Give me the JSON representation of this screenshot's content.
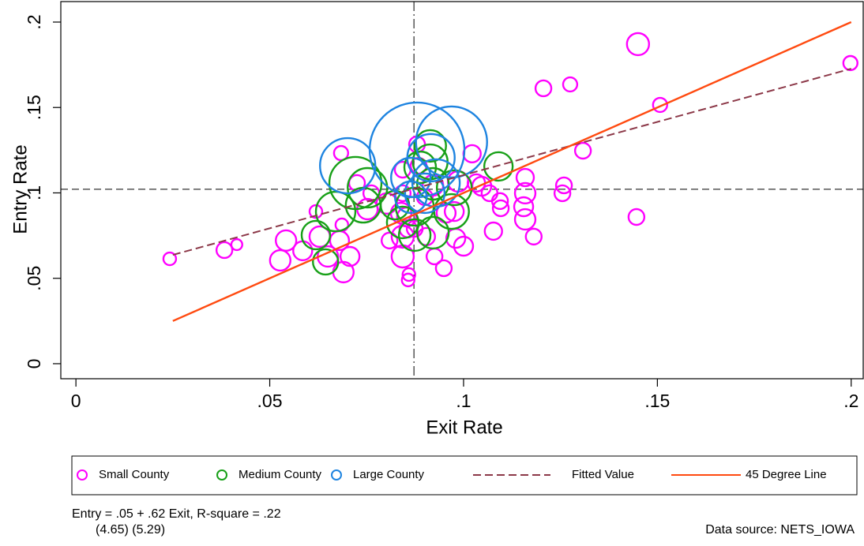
{
  "chart_data": {
    "type": "scatter",
    "x_label": "Exit Rate",
    "y_label": "Entry Rate",
    "xlim": [
      -0.0039,
      0.2031
    ],
    "ylim": [
      -0.0088,
      0.212
    ],
    "xticks": [
      0,
      {
        "value": 0.05,
        "label": ".05"
      },
      {
        "value": 0.1,
        "label": ".1"
      },
      {
        "value": 0.15,
        "label": ".15"
      },
      {
        "value": 0.2,
        "label": ".2"
      }
    ],
    "yticks": [
      0,
      {
        "value": 0.05,
        "label": ".05"
      },
      {
        "value": 0.1,
        "label": ".1"
      },
      {
        "value": 0.15,
        "label": ".15"
      },
      {
        "value": 0.2,
        "label": ".2"
      }
    ],
    "xline": 0.0872,
    "yline": 0.1021,
    "series": [
      {
        "name": "Small County",
        "kind": "bubble",
        "color": "#ff00ff",
        "x": [
          0.0242,
          0.0383,
          0.0415,
          0.0527,
          0.0542,
          0.0585,
          0.0619,
          0.0629,
          0.065,
          0.068,
          0.0684,
          0.069,
          0.0707,
          0.0686,
          0.0725,
          0.0752,
          0.0762,
          0.0802,
          0.0809,
          0.0843,
          0.0843,
          0.0843,
          0.0853,
          0.0857,
          0.0857,
          0.0859,
          0.0839,
          0.0843,
          0.0874,
          0.088,
          0.0884,
          0.09,
          0.0904,
          0.0921,
          0.0925,
          0.0949,
          0.0955,
          0.0976,
          0.098,
          0.0986,
          0.1,
          0.1022,
          0.1033,
          0.1047,
          0.1067,
          0.1077,
          0.1094,
          0.1096,
          0.1159,
          0.1159,
          0.1155,
          0.1159,
          0.1181,
          0.1206,
          0.1275,
          0.1255,
          0.1259,
          0.1308,
          0.1446,
          0.145,
          0.1507,
          0.1998
        ],
        "y": [
          0.0614,
          0.0665,
          0.0697,
          0.0605,
          0.0721,
          0.0661,
          0.0891,
          0.0744,
          0.0628,
          0.0721,
          0.1233,
          0.0536,
          0.0628,
          0.0813,
          0.1058,
          0.0905,
          0.0998,
          0.0938,
          0.0721,
          0.0744,
          0.0998,
          0.1136,
          0.0859,
          0.079,
          0.049,
          0.0522,
          0.0882,
          0.0628,
          0.079,
          0.1284,
          0.1159,
          0.0975,
          0.0744,
          0.1044,
          0.0628,
          0.0559,
          0.0882,
          0.0891,
          0.0734,
          0.1067,
          0.0688,
          0.1229,
          0.1058,
          0.1039,
          0.0998,
          0.0776,
          0.0952,
          0.091,
          0.109,
          0.0998,
          0.0919,
          0.0845,
          0.0744,
          0.1612,
          0.1635,
          0.0998,
          0.1044,
          0.1247,
          0.0859,
          0.1871,
          0.1515,
          0.176
        ],
        "sizes": [
          16,
          25,
          12,
          42,
          42,
          36,
          16,
          42,
          42,
          36,
          20,
          42,
          36,
          16,
          25,
          42,
          25,
          42,
          25,
          49,
          25,
          25,
          36,
          30,
          16,
          16,
          42,
          49,
          25,
          25,
          25,
          25,
          30,
          42,
          25,
          25,
          36,
          36,
          36,
          42,
          36,
          30,
          30,
          36,
          25,
          30,
          25,
          25,
          30,
          42,
          36,
          42,
          25,
          25,
          20,
          25,
          25,
          25,
          25,
          49,
          20,
          20
        ]
      },
      {
        "name": "Medium County",
        "kind": "bubble",
        "color": "#18a018",
        "x": [
          0.0619,
          0.0644,
          0.067,
          0.0721,
          0.0741,
          0.0752,
          0.0823,
          0.0843,
          0.0874,
          0.0874,
          0.0914,
          0.0921,
          0.0921,
          0.0888,
          0.0914,
          0.0969,
          0.0976,
          0.109
        ],
        "y": [
          0.0753,
          0.0596,
          0.0891,
          0.1058,
          0.0928,
          0.103,
          0.0928,
          0.0827,
          0.0753,
          0.0919,
          0.1275,
          0.0767,
          0.1053,
          0.115,
          0.1182,
          0.0891,
          0.103,
          0.1155
        ],
        "sizes": [
          81,
          64,
          156,
          272,
          121,
          156,
          81,
          100,
          100,
          144,
          100,
          100,
          100,
          100,
          121,
          121,
          121,
          81
        ]
      },
      {
        "name": "Large County",
        "kind": "bubble",
        "color": "#1e84e0",
        "x": [
          0.0701,
          0.088,
          0.0969,
          0.0916,
          0.0864,
          0.0929,
          0.09,
          0.0864
        ],
        "y": [
          0.1159,
          0.1252,
          0.1298,
          0.1206,
          0.109,
          0.1058,
          0.0998,
          0.0975
        ],
        "sizes": [
          306,
          900,
          506,
          225,
          156,
          225,
          156,
          100
        ]
      },
      {
        "name": "Fitted Value",
        "kind": "line",
        "style": "dashed",
        "color": "#8c3848",
        "x": [
          0.025,
          0.2
        ],
        "y": [
          0.0637,
          0.1727
        ]
      },
      {
        "name": "45 Degree Line",
        "kind": "line",
        "style": "solid",
        "color": "#ff4a10",
        "x": [
          0.025,
          0.2
        ],
        "y": [
          0.025,
          0.2
        ]
      }
    ],
    "notes": [
      "Entry = .05 + .62 Exit, R-square = .22",
      "(4.65) (5.29)",
      "Data source: NETS_IOWA"
    ]
  }
}
